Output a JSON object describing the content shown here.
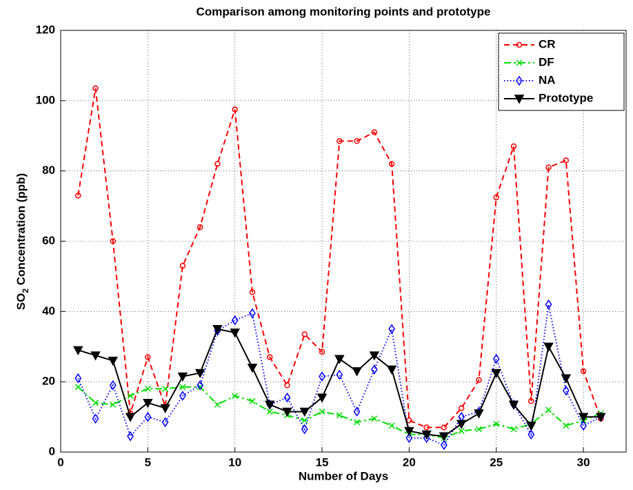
{
  "chart_data": {
    "type": "line",
    "title": "Comparison among monitoring points and prototype",
    "xlabel": "Number of Days",
    "ylabel": {
      "text": "SO",
      "subscript": "2",
      "rest": " Concentration (ppb)"
    },
    "x": [
      1,
      2,
      3,
      4,
      5,
      6,
      7,
      8,
      9,
      10,
      11,
      12,
      13,
      14,
      15,
      16,
      17,
      18,
      19,
      20,
      21,
      22,
      23,
      24,
      25,
      26,
      27,
      28,
      29,
      30,
      31
    ],
    "series": [
      {
        "name": "CR",
        "color": "#ff0000",
        "dash": "8,5",
        "marker": "circle",
        "values": [
          73,
          103.5,
          60,
          11,
          27,
          13,
          53,
          64,
          82,
          97.5,
          45.5,
          27,
          19,
          33.5,
          28.5,
          88.5,
          88.5,
          91,
          82,
          9,
          7,
          7,
          12.5,
          20.5,
          72.5,
          87,
          14.5,
          81,
          83,
          23,
          9.5
        ]
      },
      {
        "name": "DF",
        "color": "#00dd00",
        "dash": "10,4,3,4",
        "marker": "x",
        "values": [
          18.5,
          14,
          13.5,
          16,
          18,
          18,
          18.5,
          18.5,
          13.5,
          16,
          14.5,
          11.5,
          10.5,
          9,
          11.5,
          10.5,
          8.5,
          9.5,
          7.5,
          5,
          5,
          4,
          6,
          6.5,
          8,
          6.5,
          8,
          12,
          7.5,
          9,
          11
        ]
      },
      {
        "name": "NA",
        "color": "#0000ff",
        "dash": "1.5,3",
        "marker": "diamond",
        "values": [
          21,
          9.5,
          19,
          4.5,
          10,
          8.5,
          16,
          19,
          34.5,
          37.5,
          39.5,
          13.5,
          15.5,
          6.5,
          21.5,
          22,
          11.5,
          23.5,
          35,
          4,
          4,
          2,
          10,
          11.5,
          26.5,
          13.5,
          5,
          42,
          17.5,
          7.5,
          10
        ]
      },
      {
        "name": "Prototype",
        "color": "#000000",
        "dash": "",
        "marker": "triangle-down",
        "values": [
          29,
          27.5,
          26,
          10,
          14,
          12.5,
          21.5,
          22.5,
          35,
          34,
          24,
          13.5,
          11.5,
          11.5,
          15.5,
          26.5,
          23,
          27.5,
          23.5,
          6,
          5,
          4.5,
          8,
          11,
          22.5,
          13.5,
          7.5,
          30,
          21,
          10,
          10
        ]
      }
    ],
    "xlim": [
      0,
      32.45
    ],
    "xticks": [
      0,
      5,
      10,
      15,
      20,
      25,
      30
    ],
    "ylim": [
      0,
      120
    ],
    "yticks": [
      0,
      20,
      40,
      60,
      80,
      100,
      120
    ],
    "grid": true,
    "legend": "upper right"
  }
}
